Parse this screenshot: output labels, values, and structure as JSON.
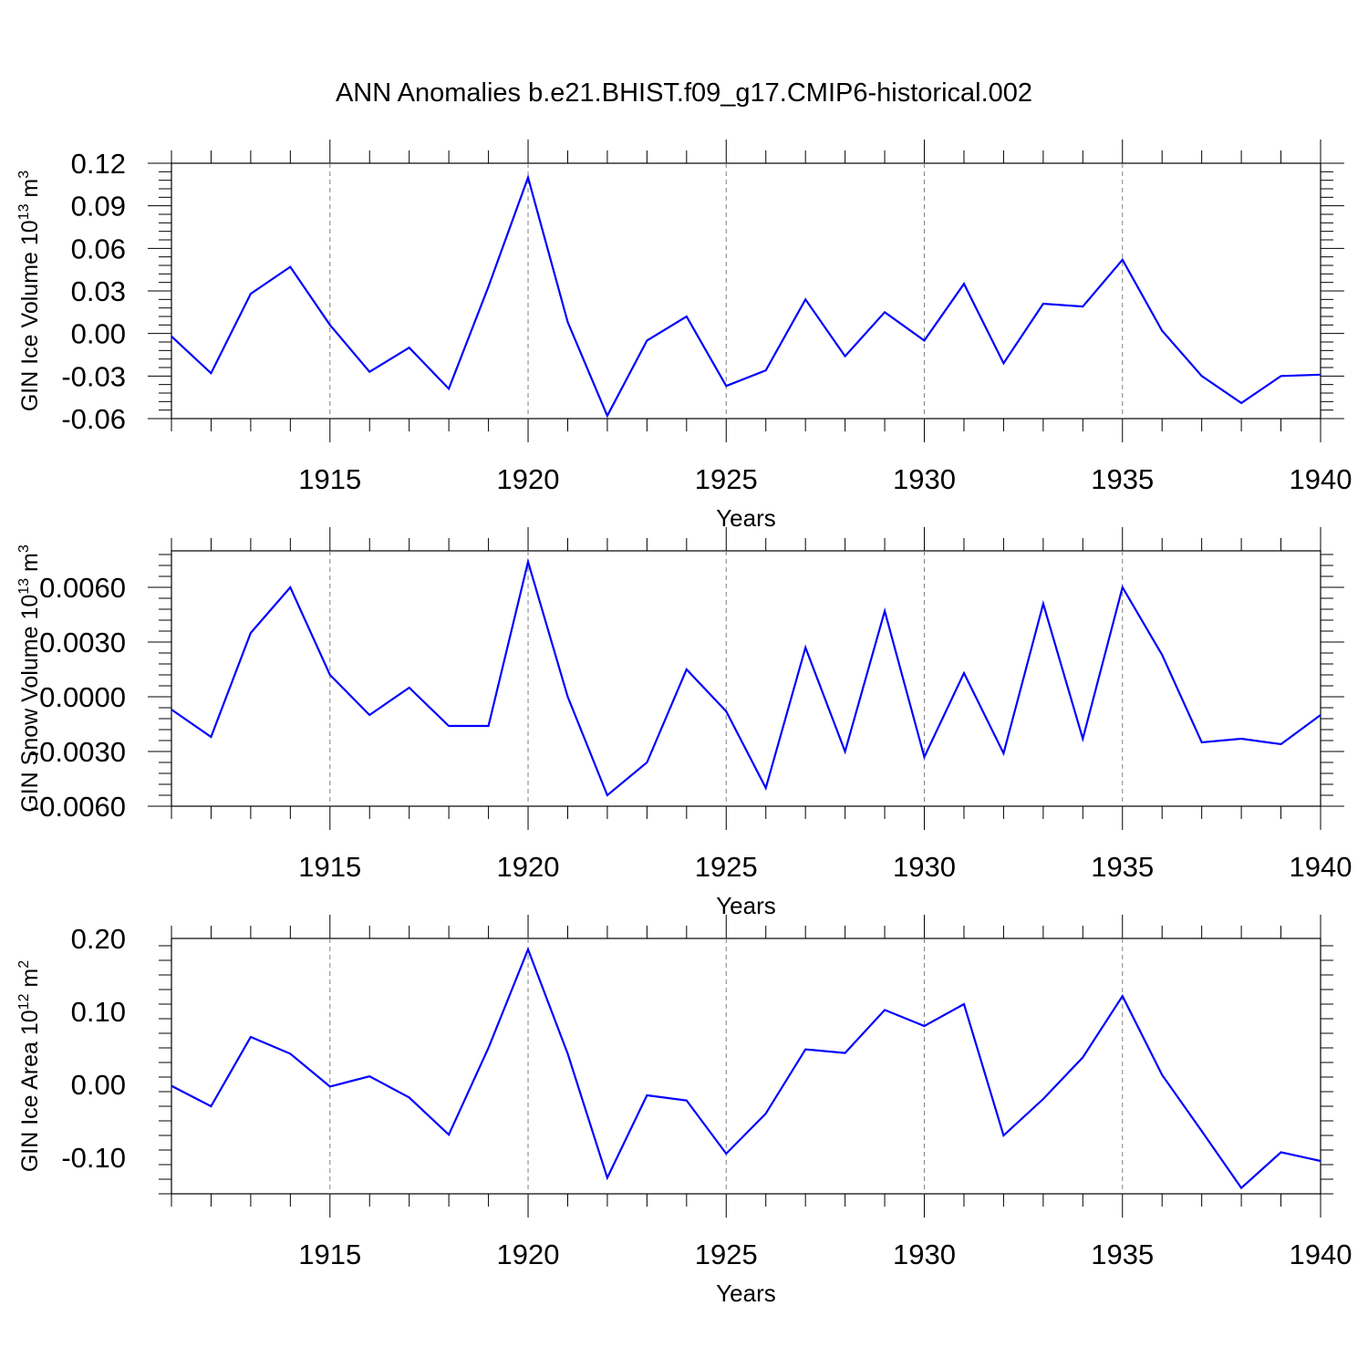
{
  "title": "ANN Anomalies b.e21.BHIST.f09_g17.CMIP6-historical.002",
  "colors": {
    "line": "#0000ff",
    "axis": "#000000",
    "grid": "#808080"
  },
  "chart_data": [
    {
      "type": "line",
      "ylabel": "GIN Ice Volume 10",
      "ylabel_sup_exp": "13",
      "ylabel_unit": " m",
      "ylabel_unit_exp": "3",
      "xlabel": "Years",
      "xlim": [
        1911,
        1940
      ],
      "ylim": [
        -0.06,
        0.12
      ],
      "xticks": [
        "1915",
        "1920",
        "1925",
        "1930",
        "1935",
        "1940"
      ],
      "yticks": [
        "0.12",
        "0.09",
        "0.06",
        "0.03",
        "0.00",
        "-0.03",
        "-0.06"
      ],
      "ytick_values": [
        0.12,
        0.09,
        0.06,
        0.03,
        0.0,
        -0.03,
        -0.06
      ],
      "x": [
        1911,
        1912,
        1913,
        1914,
        1915,
        1916,
        1917,
        1918,
        1919,
        1920,
        1921,
        1922,
        1923,
        1924,
        1925,
        1926,
        1927,
        1928,
        1929,
        1930,
        1931,
        1932,
        1933,
        1934,
        1935,
        1936,
        1937,
        1938,
        1939,
        1940
      ],
      "values": [
        -0.002,
        -0.028,
        0.028,
        0.047,
        0.006,
        -0.027,
        -0.01,
        -0.039,
        0.033,
        0.11,
        0.008,
        -0.058,
        -0.005,
        0.012,
        -0.037,
        -0.026,
        0.024,
        -0.016,
        0.015,
        -0.005,
        0.035,
        -0.021,
        0.021,
        0.019,
        0.052,
        0.002,
        -0.03,
        -0.049,
        -0.03,
        -0.029
      ]
    },
    {
      "type": "line",
      "ylabel": "GIN Snow Volume 10",
      "ylabel_sup_exp": "13",
      "ylabel_unit": " m",
      "ylabel_unit_exp": "3",
      "xlabel": "Years",
      "xlim": [
        1911,
        1940
      ],
      "ylim": [
        -0.006,
        0.008
      ],
      "xticks": [
        "1915",
        "1920",
        "1925",
        "1930",
        "1935",
        "1940"
      ],
      "yticks": [
        "0.0060",
        "0.0030",
        "0.0000",
        "-0.0030",
        "-0.0060"
      ],
      "ytick_values": [
        0.006,
        0.003,
        0.0,
        -0.003,
        -0.006
      ],
      "x": [
        1911,
        1912,
        1913,
        1914,
        1915,
        1916,
        1917,
        1918,
        1919,
        1920,
        1921,
        1922,
        1923,
        1924,
        1925,
        1926,
        1927,
        1928,
        1929,
        1930,
        1931,
        1932,
        1933,
        1934,
        1935,
        1936,
        1937,
        1938,
        1939,
        1940
      ],
      "values": [
        -0.0007,
        -0.0022,
        0.0035,
        0.006,
        0.0012,
        -0.001,
        0.0005,
        -0.0016,
        -0.0016,
        0.0074,
        0.0,
        -0.0054,
        -0.0036,
        0.0015,
        -0.0008,
        -0.005,
        0.0027,
        -0.003,
        0.0047,
        -0.0033,
        0.0013,
        -0.0031,
        0.0051,
        -0.0023,
        0.006,
        0.0023,
        -0.0025,
        -0.0023,
        -0.0026,
        -0.001
      ]
    },
    {
      "type": "line",
      "ylabel": "GIN Ice Area 10",
      "ylabel_sup_exp": "12",
      "ylabel_unit": " m",
      "ylabel_unit_exp": "2",
      "xlabel": "Years",
      "xlim": [
        1911,
        1940
      ],
      "ylim": [
        -0.15,
        0.2
      ],
      "xticks": [
        "1915",
        "1920",
        "1925",
        "1930",
        "1935",
        "1940"
      ],
      "yticks": [
        "0.20",
        "0.10",
        "0.00",
        "-0.10"
      ],
      "ytick_values": [
        0.2,
        0.1,
        0.0,
        -0.1
      ],
      "x": [
        1911,
        1912,
        1913,
        1914,
        1915,
        1916,
        1917,
        1918,
        1919,
        1920,
        1921,
        1922,
        1923,
        1924,
        1925,
        1926,
        1927,
        1928,
        1929,
        1930,
        1931,
        1932,
        1933,
        1934,
        1935,
        1936,
        1937,
        1938,
        1939,
        1940
      ],
      "values": [
        -0.002,
        -0.03,
        0.065,
        0.042,
        -0.003,
        0.011,
        -0.018,
        -0.069,
        0.05,
        0.185,
        0.042,
        -0.128,
        -0.015,
        -0.022,
        -0.095,
        -0.04,
        0.048,
        0.043,
        0.102,
        0.08,
        0.11,
        -0.07,
        -0.02,
        0.037,
        0.121,
        0.013,
        -0.064,
        -0.142,
        -0.093,
        -0.105
      ]
    }
  ]
}
